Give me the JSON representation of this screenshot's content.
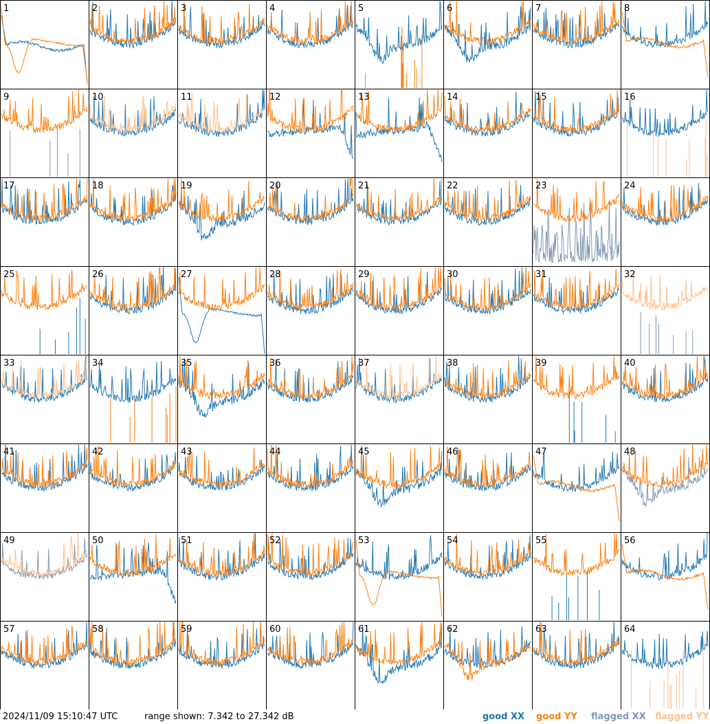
{
  "timestamp": "2024/11/09 15:10:47 UTC",
  "range_text": "range shown: 7.342 to 27.342 dB",
  "legend": [
    {
      "label": "good XX",
      "color": "#1f77b4"
    },
    {
      "label": "good YY",
      "color": "#ff7f0e"
    },
    {
      "label": "flagged XX",
      "color": "#7f99b4"
    },
    {
      "label": "flagged YY",
      "color": "#ffc08e"
    }
  ],
  "chart_data": {
    "type": "line",
    "layout": "small-multiples 8x8",
    "ylim": [
      7.342,
      27.342
    ],
    "y_unit": "dB",
    "series_keys": [
      "XX",
      "YY"
    ],
    "panels": [
      {
        "id": "1",
        "xx": "good",
        "yy": "good",
        "xx_shape": "flat",
        "yy_shape": "deep_dip_left"
      },
      {
        "id": "2",
        "xx": "good",
        "yy": "good"
      },
      {
        "id": "3",
        "xx": "good",
        "yy": "good"
      },
      {
        "id": "4",
        "xx": "good",
        "yy": "good"
      },
      {
        "id": "5",
        "xx": "good",
        "yy": "good",
        "xx_shape": "low_dip",
        "yy_shape": "spikes_from_bottom"
      },
      {
        "id": "6",
        "xx": "good",
        "yy": "good",
        "xx_shape": "low_dip"
      },
      {
        "id": "7",
        "xx": "good",
        "yy": "good"
      },
      {
        "id": "8",
        "xx": "good",
        "yy": "good",
        "yy_shape": "flat"
      },
      {
        "id": "9",
        "xx": "flagged",
        "yy": "good",
        "xx_shape": "spikes_from_bottom"
      },
      {
        "id": "10",
        "xx": "good",
        "yy": "flagged"
      },
      {
        "id": "11",
        "xx": "good",
        "yy": "flagged"
      },
      {
        "id": "12",
        "xx": "good",
        "yy": "good",
        "xx_shape": "drop_right"
      },
      {
        "id": "13",
        "xx": "good",
        "yy": "good",
        "xx_shape": "drop_right"
      },
      {
        "id": "14",
        "xx": "good",
        "yy": "good"
      },
      {
        "id": "15",
        "xx": "good",
        "yy": "good"
      },
      {
        "id": "16",
        "xx": "good",
        "yy": "flagged",
        "yy_shape": "spikes_from_bottom"
      },
      {
        "id": "17",
        "xx": "good",
        "yy": "good"
      },
      {
        "id": "18",
        "xx": "good",
        "yy": "good"
      },
      {
        "id": "19",
        "xx": "good",
        "yy": "good",
        "xx_shape": "low_dip"
      },
      {
        "id": "20",
        "xx": "good",
        "yy": "good"
      },
      {
        "id": "21",
        "xx": "good",
        "yy": "good"
      },
      {
        "id": "22",
        "xx": "good",
        "yy": "good"
      },
      {
        "id": "23",
        "xx": "flagged",
        "yy": "good",
        "xx_shape": "noisy_low"
      },
      {
        "id": "24",
        "xx": "good",
        "yy": "good"
      },
      {
        "id": "25",
        "xx": "good",
        "yy": "good",
        "xx_shape": "spikes_from_bottom"
      },
      {
        "id": "26",
        "xx": "good",
        "yy": "good"
      },
      {
        "id": "27",
        "xx": "good",
        "yy": "good",
        "xx_shape": "deep_dip_left"
      },
      {
        "id": "28",
        "xx": "good",
        "yy": "good"
      },
      {
        "id": "29",
        "xx": "good",
        "yy": "good"
      },
      {
        "id": "30",
        "xx": "good",
        "yy": "good"
      },
      {
        "id": "31",
        "xx": "good",
        "yy": "good"
      },
      {
        "id": "32",
        "xx": "flagged",
        "yy": "flagged",
        "xx_shape": "spikes_from_bottom"
      },
      {
        "id": "33",
        "xx": "good",
        "yy": "flagged"
      },
      {
        "id": "34",
        "xx": "good",
        "yy": "good",
        "yy_shape": "spikes_from_bottom"
      },
      {
        "id": "35",
        "xx": "good",
        "yy": "good",
        "xx_shape": "low_dip"
      },
      {
        "id": "36",
        "xx": "good",
        "yy": "good"
      },
      {
        "id": "37",
        "xx": "good",
        "yy": "flagged"
      },
      {
        "id": "38",
        "xx": "good",
        "yy": "good"
      },
      {
        "id": "39",
        "xx": "good",
        "yy": "good",
        "xx_shape": "spikes_from_bottom"
      },
      {
        "id": "40",
        "xx": "good",
        "yy": "good"
      },
      {
        "id": "41",
        "xx": "good",
        "yy": "good"
      },
      {
        "id": "42",
        "xx": "good",
        "yy": "good"
      },
      {
        "id": "43",
        "xx": "good",
        "yy": "good"
      },
      {
        "id": "44",
        "xx": "good",
        "yy": "good"
      },
      {
        "id": "45",
        "xx": "good",
        "yy": "good",
        "xx_shape": "low_dip"
      },
      {
        "id": "46",
        "xx": "good",
        "yy": "good"
      },
      {
        "id": "47",
        "xx": "good",
        "yy": "good",
        "yy_shape": "flat"
      },
      {
        "id": "48",
        "xx": "flagged",
        "yy": "good",
        "xx_shape": "low_dip"
      },
      {
        "id": "49",
        "xx": "flagged",
        "yy": "flagged"
      },
      {
        "id": "50",
        "xx": "good",
        "yy": "good",
        "xx_shape": "drop_right"
      },
      {
        "id": "51",
        "xx": "good",
        "yy": "good"
      },
      {
        "id": "52",
        "xx": "good",
        "yy": "good"
      },
      {
        "id": "53",
        "xx": "good",
        "yy": "good",
        "yy_shape": "deep_dip_left"
      },
      {
        "id": "54",
        "xx": "good",
        "yy": "good"
      },
      {
        "id": "55",
        "xx": "good",
        "yy": "good",
        "xx_shape": "spikes_from_bottom"
      },
      {
        "id": "56",
        "xx": "good",
        "yy": "good",
        "yy_shape": "flat"
      },
      {
        "id": "57",
        "xx": "good",
        "yy": "good"
      },
      {
        "id": "58",
        "xx": "good",
        "yy": "good"
      },
      {
        "id": "59",
        "xx": "good",
        "yy": "good"
      },
      {
        "id": "60",
        "xx": "good",
        "yy": "good"
      },
      {
        "id": "61",
        "xx": "good",
        "yy": "good",
        "xx_shape": "low_dip"
      },
      {
        "id": "62",
        "xx": "good",
        "yy": "good",
        "yy_shape": "low_dip"
      },
      {
        "id": "63",
        "xx": "good",
        "yy": "good"
      },
      {
        "id": "64",
        "xx": "good",
        "yy": "flagged",
        "yy_shape": "spikes_from_bottom"
      }
    ]
  }
}
